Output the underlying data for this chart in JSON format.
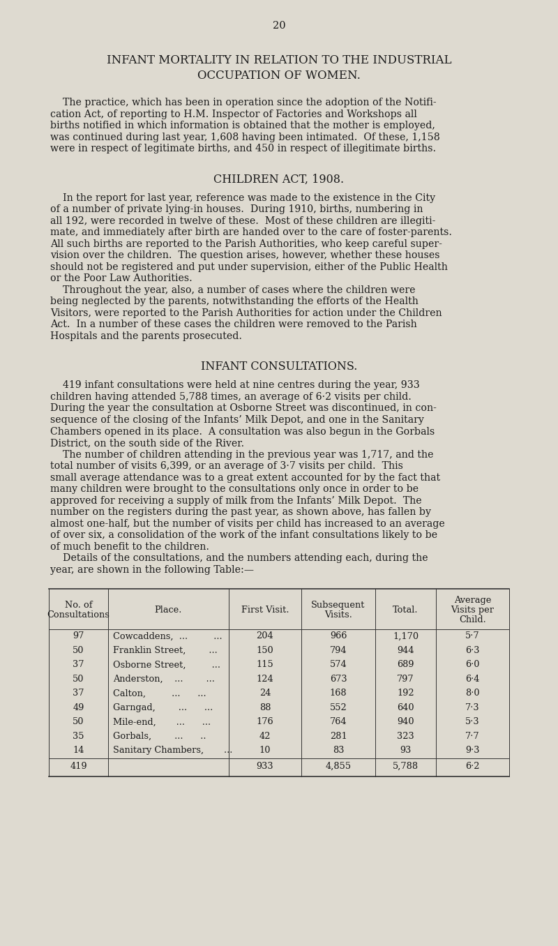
{
  "page_number": "20",
  "background_color": "#dedad0",
  "text_color": "#1a1a1a",
  "title1": "INFANT MORTALITY IN RELATION TO THE INDUSTRIAL",
  "title2": "OCCUPATION OF WOMEN.",
  "para1_indent": "    The practice, which has been in operation since the adoption of the Notifi-",
  "para1_rest": [
    "cation Act, of reporting to H.M. Inspector of Factories and Workshops all",
    "births notified in which information is obtained that the mother is employed,",
    "was continued during last year, 1,608 having been intimated.  Of these, 1,158",
    "were in respect of legitimate births, and 450 in respect of illegitimate births."
  ],
  "section1": "CHILDREN ACT, 1908.",
  "para2_indent": "    In the report for last year, reference was made to the existence in the City",
  "para2_rest": [
    "of a number of private lying-in houses.  During 1910, births, numbering in",
    "all 192, were recorded in twelve of these.  Most of these children are illegiti-",
    "mate, and immediately after birth are handed over to the care of foster-parents.",
    "All such births are reported to the Parish Authorities, who keep careful super-",
    "vision over the children.  The question arises, however, whether these houses",
    "should not be registered and put under supervision, either of the Public Health",
    "or the Poor Law Authorities."
  ],
  "para3_indent": "    Throughout the year, also, a number of cases where the children were",
  "para3_rest": [
    "being neglected by the parents, notwithstanding the efforts of the Health",
    "Visitors, were reported to the Parish Authorities for action under the Children",
    "Act.  In a number of these cases the children were removed to the Parish",
    "Hospitals and the parents prosecuted."
  ],
  "section2": "INFANT CONSULTATIONS.",
  "para4_indent": "    419 infant consultations were held at nine centres during the year, 933",
  "para4_rest": [
    "children having attended 5,788 times, an average of 6·2 visits per child.",
    "During the year the consultation at Osborne Street was discontinued, in con-",
    "sequence of the closing of the Infants’ Milk Depot, and one in the Sanitary",
    "Chambers opened in its place.  A consultation was also begun in the Gorbals",
    "District, on the south side of the River."
  ],
  "para5_indent": "    The number of children attending in the previous year was 1,717, and the",
  "para5_rest": [
    "total number of visits 6,399, or an average of 3·7 visits per child.  This",
    "small average attendance was to a great extent accounted for by the fact that",
    "many children were brought to the consultations only once in order to be",
    "approved for receiving a supply of milk from the Infants’ Milk Depot.  The",
    "number on the registers during the past year, as shown above, has fallen by",
    "almost one-half, but the number of visits per child has increased to an average",
    "of over six, a consolidation of the work of the infant consultations likely to be",
    "of much benefit to the children."
  ],
  "para6_indent": "    Details of the consultations, and the numbers attending each, during the",
  "para6_rest": [
    "year, are shown in the following Table:—"
  ],
  "table_rows": [
    [
      "97",
      "Cowcaddens,  ...         ...",
      "204",
      "966",
      "1,170",
      "5·7"
    ],
    [
      "50",
      "Franklin Street,        ...",
      "150",
      "794",
      "944",
      "6·3"
    ],
    [
      "37",
      "Osborne Street,         ...",
      "115",
      "574",
      "689",
      "6·0"
    ],
    [
      "50",
      "Anderston,    ...        ...",
      "124",
      "673",
      "797",
      "6·4"
    ],
    [
      "37",
      "Calton,         ...      ...",
      "24",
      "168",
      "192",
      "8·0"
    ],
    [
      "49",
      "Garngad,        ...      ...",
      "88",
      "552",
      "640",
      "7·3"
    ],
    [
      "50",
      "Mile-end,       ...      ...",
      "176",
      "764",
      "940",
      "5·3"
    ],
    [
      "35",
      "Gorbals,        ...      ..",
      "42",
      "281",
      "323",
      "7·7"
    ],
    [
      "14",
      "Sanitary Chambers,       ...",
      "10",
      "83",
      "93",
      "9·3"
    ]
  ],
  "table_footer": [
    "419",
    "",
    "933",
    "4,855",
    "5,788",
    "6·2"
  ]
}
